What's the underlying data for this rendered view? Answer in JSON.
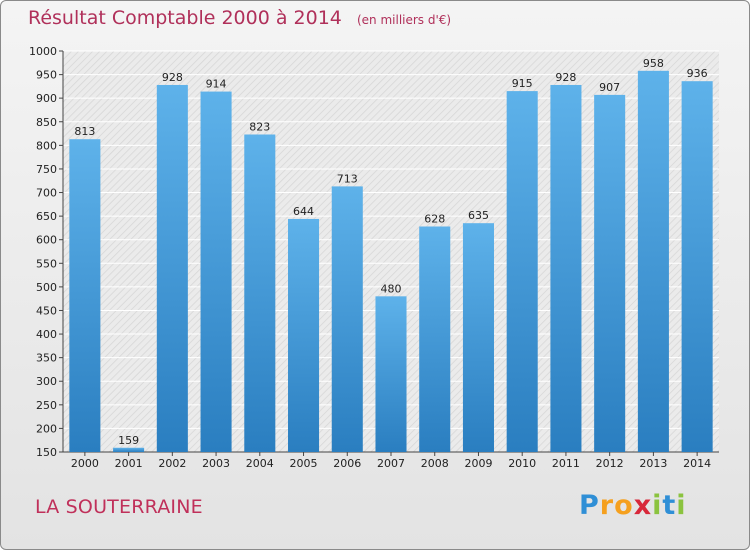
{
  "chart_data": {
    "type": "bar",
    "title": "Résultat Comptable 2000 à 2014",
    "subtitle": "(en milliers d'€)",
    "categories": [
      "2000",
      "2001",
      "2002",
      "2003",
      "2004",
      "2005",
      "2006",
      "2007",
      "2008",
      "2009",
      "2010",
      "2011",
      "2012",
      "2013",
      "2014"
    ],
    "values": [
      813,
      159,
      928,
      914,
      823,
      644,
      713,
      480,
      628,
      635,
      915,
      928,
      907,
      958,
      936
    ],
    "ylim": [
      150,
      1000
    ],
    "yticks": [
      150,
      200,
      250,
      300,
      350,
      400,
      450,
      500,
      550,
      600,
      650,
      700,
      750,
      800,
      850,
      900,
      950,
      1000
    ],
    "grid": true,
    "colors": {
      "bar_top": "#5eb2ea",
      "bar_bottom": "#2a7ec0",
      "title": "#b0305a"
    }
  },
  "footer": {
    "city": "LA SOUTERRAINE",
    "logo_letters": [
      "P",
      "r",
      "o",
      "x",
      "i",
      "t",
      "i"
    ],
    "logo_colors": [
      "#2f8fd6",
      "#f5a01e",
      "#f5a01e",
      "#d8283a",
      "#8bc33f",
      "#2f8fd6",
      "#8bc33f"
    ]
  }
}
